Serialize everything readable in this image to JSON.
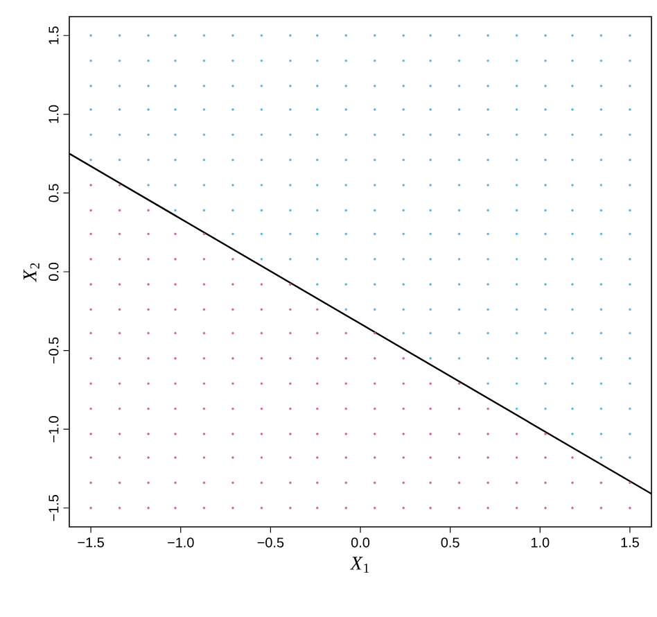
{
  "chart_data": {
    "type": "scatter",
    "xlabel": "*X*$_{1}$",
    "ylabel": "*X*$_{2}$",
    "xlim": [
      -1.62,
      1.62
    ],
    "ylim": [
      -1.62,
      1.62
    ],
    "xticks": [
      {
        "value": -1.5,
        "label": "−1.5"
      },
      {
        "value": -1.0,
        "label": "−1.0"
      },
      {
        "value": -0.5,
        "label": "−0.5"
      },
      {
        "value": 0,
        "label": "0.0"
      },
      0.5,
      {
        "value": 1,
        "label": "1.0"
      },
      1.5
    ],
    "yticks": [
      {
        "value": -1.5,
        "label": "−1.5"
      },
      {
        "value": -1.0,
        "label": "−1.0"
      },
      {
        "value": -0.5,
        "label": "−0.5"
      },
      {
        "value": 0,
        "label": "0.0"
      },
      0.5,
      {
        "value": 1,
        "label": "1.0"
      },
      1.5
    ],
    "marker": "circle",
    "grid": false,
    "series": [
      {
        "color": "#d9667a",
        "x": [
          -1.5,
          -1.34,
          -1.18,
          -1.03,
          -0.87,
          -0.71,
          -0.55,
          -0.39,
          -0.24,
          -0.08,
          0.08,
          0.24,
          0.39,
          0.55,
          0.71,
          0.87,
          1.03,
          1.18,
          1.34,
          1.5
        ],
        "values": [
          -1.5,
          -1.5,
          -1.5,
          -1.5,
          -1.5,
          -1.5,
          -1.5,
          -1.5,
          -1.5,
          -1.5,
          -1.5,
          -1.5,
          -1.5,
          -1.5,
          -1.5,
          -1.5,
          -1.5,
          -1.5,
          -1.5,
          -1.5
        ]
      },
      {
        "color": "#d9667a",
        "x": [
          -1.5,
          -1.34,
          -1.18,
          -1.03,
          -0.87,
          -0.71,
          -0.55,
          -0.39,
          -0.24,
          -0.08,
          0.08,
          0.24,
          0.39,
          0.55,
          0.71,
          0.87,
          1.03,
          1.18,
          1.34,
          1.5
        ],
        "values": [
          -1.34,
          -1.34,
          -1.34,
          -1.34,
          -1.34,
          -1.34,
          -1.34,
          -1.34,
          -1.34,
          -1.34,
          -1.34,
          -1.34,
          -1.34,
          -1.34,
          -1.34,
          -1.34,
          -1.34,
          -1.34,
          -1.34,
          -1.34
        ]
      },
      {
        "color": "#d9667a",
        "x": [
          -1.5,
          -1.34,
          -1.18,
          -1.03,
          -0.87,
          -0.71,
          -0.55,
          -0.39,
          -0.24,
          -0.08,
          0.08,
          0.24,
          0.39,
          0.55,
          0.71,
          0.87,
          1.03,
          1.18
        ],
        "values": [
          -1.18,
          -1.18,
          -1.18,
          -1.18,
          -1.18,
          -1.18,
          -1.18,
          -1.18,
          -1.18,
          -1.18,
          -1.18,
          -1.18,
          -1.18,
          -1.18,
          -1.18,
          -1.18,
          -1.18,
          -1.18
        ]
      },
      {
        "color": "#5ab4e0",
        "x": [
          1.34,
          1.5
        ],
        "values": [
          -1.18,
          -1.18
        ]
      },
      {
        "color": "#d9667a",
        "x": [
          -1.5,
          -1.34,
          -1.18,
          -1.03,
          -0.87,
          -0.71,
          -0.55,
          -0.39,
          -0.24,
          -0.08,
          0.08,
          0.24,
          0.39,
          0.55,
          0.71,
          0.87,
          1.03
        ],
        "values": [
          -1.03,
          -1.03,
          -1.03,
          -1.03,
          -1.03,
          -1.03,
          -1.03,
          -1.03,
          -1.03,
          -1.03,
          -1.03,
          -1.03,
          -1.03,
          -1.03,
          -1.03,
          -1.03,
          -1.03
        ]
      },
      {
        "color": "#5ab4e0",
        "x": [
          1.18,
          1.34,
          1.5
        ],
        "values": [
          -1.03,
          -1.03,
          -1.03
        ]
      },
      {
        "color": "#d9667a",
        "x": [
          -1.5,
          -1.34,
          -1.18,
          -1.03,
          -0.87,
          -0.71,
          -0.55,
          -0.39,
          -0.24,
          -0.08,
          0.08,
          0.24,
          0.39,
          0.55,
          0.71
        ],
        "values": [
          -0.87,
          -0.87,
          -0.87,
          -0.87,
          -0.87,
          -0.87,
          -0.87,
          -0.87,
          -0.87,
          -0.87,
          -0.87,
          -0.87,
          -0.87,
          -0.87,
          -0.87
        ]
      },
      {
        "color": "#5ab4e0",
        "x": [
          0.87,
          1.03,
          1.18,
          1.34,
          1.5
        ],
        "values": [
          -0.87,
          -0.87,
          -0.87,
          -0.87,
          -0.87
        ]
      },
      {
        "color": "#d9667a",
        "x": [
          -1.5,
          -1.34,
          -1.18,
          -1.03,
          -0.87,
          -0.71,
          -0.55,
          -0.39,
          -0.24,
          -0.08,
          0.08,
          0.24,
          0.39,
          0.55
        ],
        "values": [
          -0.71,
          -0.71,
          -0.71,
          -0.71,
          -0.71,
          -0.71,
          -0.71,
          -0.71,
          -0.71,
          -0.71,
          -0.71,
          -0.71,
          -0.71,
          -0.71
        ]
      },
      {
        "color": "#5ab4e0",
        "x": [
          0.71,
          0.87,
          1.03,
          1.18,
          1.34,
          1.5
        ],
        "values": [
          -0.71,
          -0.71,
          -0.71,
          -0.71,
          -0.71,
          -0.71
        ]
      },
      {
        "color": "#d9667a",
        "x": [
          -1.5,
          -1.34,
          -1.18,
          -1.03,
          -0.87,
          -0.71,
          -0.55,
          -0.39,
          -0.24,
          -0.08,
          0.08,
          0.24
        ],
        "values": [
          -0.55,
          -0.55,
          -0.55,
          -0.55,
          -0.55,
          -0.55,
          -0.55,
          -0.55,
          -0.55,
          -0.55,
          -0.55,
          -0.55
        ]
      },
      {
        "color": "#5ab4e0",
        "x": [
          0.39,
          0.55,
          0.71,
          0.87,
          1.03,
          1.18,
          1.34,
          1.5
        ],
        "values": [
          -0.55,
          -0.55,
          -0.55,
          -0.55,
          -0.55,
          -0.55,
          -0.55,
          -0.55
        ]
      },
      {
        "color": "#d9667a",
        "x": [
          -1.5,
          -1.34,
          -1.18,
          -1.03,
          -0.87,
          -0.71,
          -0.55,
          -0.39,
          -0.24,
          -0.08,
          0.08
        ],
        "values": [
          -0.39,
          -0.39,
          -0.39,
          -0.39,
          -0.39,
          -0.39,
          -0.39,
          -0.39,
          -0.39,
          -0.39,
          -0.39
        ]
      },
      {
        "color": "#5ab4e0",
        "x": [
          0.24,
          0.39,
          0.55,
          0.71,
          0.87,
          1.03,
          1.18,
          1.34,
          1.5
        ],
        "values": [
          -0.39,
          -0.39,
          -0.39,
          -0.39,
          -0.39,
          -0.39,
          -0.39,
          -0.39,
          -0.39
        ]
      },
      {
        "color": "#d9667a",
        "x": [
          -1.5,
          -1.34,
          -1.18,
          -1.03,
          -0.87,
          -0.71,
          -0.55,
          -0.39,
          -0.24
        ],
        "values": [
          -0.24,
          -0.24,
          -0.24,
          -0.24,
          -0.24,
          -0.24,
          -0.24,
          -0.24,
          -0.24
        ]
      },
      {
        "color": "#5ab4e0",
        "x": [
          -0.08,
          0.08,
          0.24,
          0.39,
          0.55,
          0.71,
          0.87,
          1.03,
          1.18,
          1.34,
          1.5
        ],
        "values": [
          -0.24,
          -0.24,
          -0.24,
          -0.24,
          -0.24,
          -0.24,
          -0.24,
          -0.24,
          -0.24,
          -0.24,
          -0.24
        ]
      },
      {
        "color": "#d9667a",
        "x": [
          -1.5,
          -1.34,
          -1.18,
          -1.03,
          -0.87,
          -0.71,
          -0.55,
          -0.39
        ],
        "values": [
          -0.08,
          -0.08,
          -0.08,
          -0.08,
          -0.08,
          -0.08,
          -0.08,
          -0.08
        ]
      },
      {
        "color": "#5ab4e0",
        "x": [
          -0.24,
          -0.08,
          0.08,
          0.24,
          0.39,
          0.55,
          0.71,
          0.87,
          1.03,
          1.18,
          1.34,
          1.5
        ],
        "values": [
          -0.08,
          -0.08,
          -0.08,
          -0.08,
          -0.08,
          -0.08,
          -0.08,
          -0.08,
          -0.08,
          -0.08,
          -0.08,
          -0.08
        ]
      },
      {
        "color": "#d9667a",
        "x": [
          -1.5,
          -1.34,
          -1.18,
          -1.03,
          -0.87,
          -0.71
        ],
        "values": [
          0.08,
          0.08,
          0.08,
          0.08,
          0.08,
          0.08
        ]
      },
      {
        "color": "#5ab4e0",
        "x": [
          -0.55,
          -0.39,
          -0.24,
          -0.08,
          0.08,
          0.24,
          0.39,
          0.55,
          0.71,
          0.87,
          1.03,
          1.18,
          1.34,
          1.5
        ],
        "values": [
          0.08,
          0.08,
          0.08,
          0.08,
          0.08,
          0.08,
          0.08,
          0.08,
          0.08,
          0.08,
          0.08,
          0.08,
          0.08,
          0.08
        ]
      },
      {
        "color": "#d9667a",
        "x": [
          -1.5,
          -1.34,
          -1.18,
          -1.03,
          -0.87
        ],
        "values": [
          0.24,
          0.24,
          0.24,
          0.24,
          0.24
        ]
      },
      {
        "color": "#5ab4e0",
        "x": [
          -0.71,
          -0.55,
          -0.39,
          -0.24,
          -0.08,
          0.08,
          0.24,
          0.39,
          0.55,
          0.71,
          0.87,
          1.03,
          1.18,
          1.34,
          1.5
        ],
        "values": [
          0.24,
          0.24,
          0.24,
          0.24,
          0.24,
          0.24,
          0.24,
          0.24,
          0.24,
          0.24,
          0.24,
          0.24,
          0.24,
          0.24,
          0.24
        ]
      },
      {
        "color": "#d9667a",
        "x": [
          -1.5,
          -1.34,
          -1.18
        ],
        "values": [
          0.39,
          0.39,
          0.39
        ]
      },
      {
        "color": "#5ab4e0",
        "x": [
          -1.03,
          -0.87,
          -0.71,
          -0.55,
          -0.39,
          -0.24,
          -0.08,
          0.08,
          0.24,
          0.39,
          0.55,
          0.71,
          0.87,
          1.03,
          1.18,
          1.34,
          1.5
        ],
        "values": [
          0.39,
          0.39,
          0.39,
          0.39,
          0.39,
          0.39,
          0.39,
          0.39,
          0.39,
          0.39,
          0.39,
          0.39,
          0.39,
          0.39,
          0.39,
          0.39,
          0.39
        ]
      },
      {
        "color": "#d9667a",
        "x": [
          -1.5,
          -1.34
        ],
        "values": [
          0.55,
          0.55
        ]
      },
      {
        "color": "#5ab4e0",
        "x": [
          -1.18,
          -1.03,
          -0.87,
          -0.71,
          -0.55,
          -0.39,
          -0.24,
          -0.08,
          0.08,
          0.24,
          0.39,
          0.55,
          0.71,
          0.87,
          1.03,
          1.18,
          1.34,
          1.5
        ],
        "values": [
          0.55,
          0.55,
          0.55,
          0.55,
          0.55,
          0.55,
          0.55,
          0.55,
          0.55,
          0.55,
          0.55,
          0.55,
          0.55,
          0.55,
          0.55,
          0.55,
          0.55,
          0.55
        ]
      },
      {
        "color": "#5ab4e0",
        "x": [
          -1.5,
          -1.34,
          -1.18,
          -1.03,
          -0.87,
          -0.71,
          -0.55,
          -0.39,
          -0.24,
          -0.08,
          0.08,
          0.24,
          0.39,
          0.55,
          0.71,
          0.87,
          1.03,
          1.18,
          1.34,
          1.5
        ],
        "values": [
          0.71,
          0.71,
          0.71,
          0.71,
          0.71,
          0.71,
          0.71,
          0.71,
          0.71,
          0.71,
          0.71,
          0.71,
          0.71,
          0.71,
          0.71,
          0.71,
          0.71,
          0.71,
          0.71,
          0.71
        ]
      },
      {
        "color": "#5ab4e0",
        "x": [
          -1.5,
          -1.34,
          -1.18,
          -1.03,
          -0.87,
          -0.71,
          -0.55,
          -0.39,
          -0.24,
          -0.08,
          0.08,
          0.24,
          0.39,
          0.55,
          0.71,
          0.87,
          1.03,
          1.18,
          1.34,
          1.5
        ],
        "values": [
          0.87,
          0.87,
          0.87,
          0.87,
          0.87,
          0.87,
          0.87,
          0.87,
          0.87,
          0.87,
          0.87,
          0.87,
          0.87,
          0.87,
          0.87,
          0.87,
          0.87,
          0.87,
          0.87,
          0.87
        ]
      },
      {
        "color": "#5ab4e0",
        "x": [
          -1.5,
          -1.34,
          -1.18,
          -1.03,
          -0.87,
          -0.71,
          -0.55,
          -0.39,
          -0.24,
          -0.08,
          0.08,
          0.24,
          0.39,
          0.55,
          0.71,
          0.87,
          1.03,
          1.18,
          1.34,
          1.5
        ],
        "values": [
          1.03,
          1.03,
          1.03,
          1.03,
          1.03,
          1.03,
          1.03,
          1.03,
          1.03,
          1.03,
          1.03,
          1.03,
          1.03,
          1.03,
          1.03,
          1.03,
          1.03,
          1.03,
          1.03,
          1.03
        ]
      },
      {
        "color": "#5ab4e0",
        "x": [
          -1.5,
          -1.34,
          -1.18,
          -1.03,
          -0.87,
          -0.71,
          -0.55,
          -0.39,
          -0.24,
          -0.08,
          0.08,
          0.24,
          0.39,
          0.55,
          0.71,
          0.87,
          1.03,
          1.18,
          1.34,
          1.5
        ],
        "values": [
          1.18,
          1.18,
          1.18,
          1.18,
          1.18,
          1.18,
          1.18,
          1.18,
          1.18,
          1.18,
          1.18,
          1.18,
          1.18,
          1.18,
          1.18,
          1.18,
          1.18,
          1.18,
          1.18,
          1.18
        ]
      },
      {
        "color": "#5ab4e0",
        "x": [
          -1.5,
          -1.34,
          -1.18,
          -1.03,
          -0.87,
          -0.71,
          -0.55,
          -0.39,
          -0.24,
          -0.08,
          0.08,
          0.24,
          0.39,
          0.55,
          0.71,
          0.87,
          1.03,
          1.18,
          1.34,
          1.5
        ],
        "values": [
          1.34,
          1.34,
          1.34,
          1.34,
          1.34,
          1.34,
          1.34,
          1.34,
          1.34,
          1.34,
          1.34,
          1.34,
          1.34,
          1.34,
          1.34,
          1.34,
          1.34,
          1.34,
          1.34,
          1.34
        ]
      },
      {
        "color": "#5ab4e0",
        "x": [
          -1.5,
          -1.34,
          -1.18,
          -1.03,
          -0.87,
          -0.71,
          -0.55,
          -0.39,
          -0.24,
          -0.08,
          0.08,
          0.24,
          0.39,
          0.55,
          0.71,
          0.87,
          1.03,
          1.18,
          1.34,
          1.5
        ],
        "values": [
          1.5,
          1.5,
          1.5,
          1.5,
          1.5,
          1.5,
          1.5,
          1.5,
          1.5,
          1.5,
          1.5,
          1.5,
          1.5,
          1.5,
          1.5,
          1.5,
          1.5,
          1.5,
          1.5,
          1.5
        ]
      },
      {
        "type": "line",
        "color": "#000000",
        "marker": "none",
        "x": [
          -1.62,
          1.62
        ],
        "values": [
          0.75,
          -1.41
        ]
      }
    ]
  }
}
